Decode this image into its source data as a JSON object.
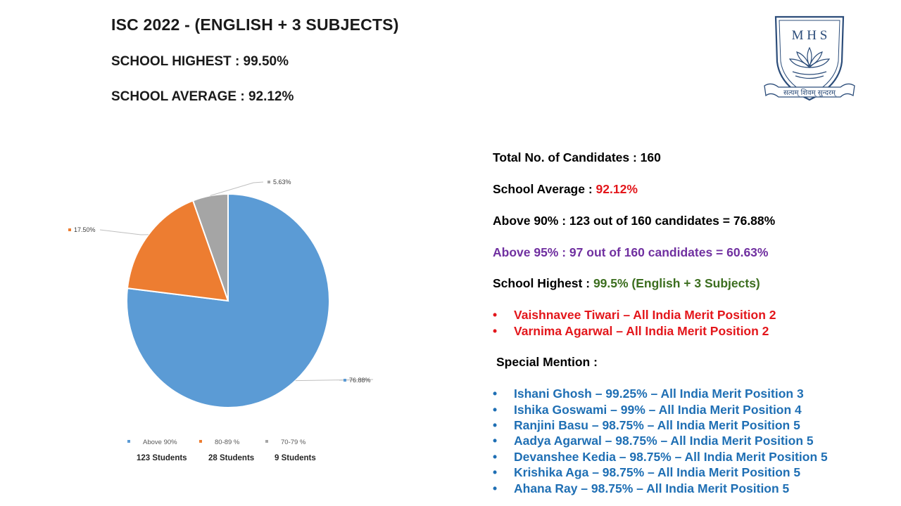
{
  "header": {
    "title": "ISC 2022 - (ENGLISH + 3 SUBJECTS)",
    "school_highest": "SCHOOL HIGHEST  :  99.50%",
    "school_average": "SCHOOL AVERAGE  :  92.12%"
  },
  "logo": {
    "letters": "M H S",
    "motto": "सत्यम् शिवम् सुन्दरम्"
  },
  "chart_data": {
    "type": "pie",
    "slices": [
      {
        "label": "Above 90%",
        "value": 76.88,
        "data_label": "76.88%",
        "color": "#5b9bd5",
        "count_label": "123 Students"
      },
      {
        "label": "80-89 %",
        "value": 17.5,
        "data_label": "17.50%",
        "color": "#ed7d31",
        "count_label": "28 Students"
      },
      {
        "label": "70-79 %",
        "value": 5.63,
        "data_label": "5.63%",
        "color": "#a5a5a5",
        "count_label": "9 Students"
      }
    ],
    "legend_position": "bottom"
  },
  "stats": {
    "total_label": "Total No. of Candidates  :  160",
    "avg_label": "School Average  :  ",
    "avg_value": "92.12%",
    "above90": "Above 90%  :  123 out of 160 candidates = 76.88%",
    "above95": "Above 95%  :  97 out of 160 candidates = 60.63%",
    "highest_label": "School Highest  :  ",
    "highest_value": "99.5% (English + 3 Subjects)",
    "toppers": [
      "Vaishnavee Tiwari – All India Merit Position 2",
      "Varnima Agarwal – All India Merit Position 2"
    ],
    "special_label": "Special Mention  :",
    "special": [
      "Ishani Ghosh – 99.25% – All India Merit Position 3",
      "Ishika Goswami – 99% – All India Merit Position 4",
      "Ranjini Basu – 98.75% – All India Merit Position 5",
      "Aadya Agarwal – 98.75% – All India Merit Position 5",
      "Devanshee Kedia – 98.75% – All India Merit Position 5",
      "Krishika Aga – 98.75% – All India Merit Position 5",
      "Ahana Ray – 98.75% – All India Merit Position 5"
    ],
    "bullet": "•"
  }
}
